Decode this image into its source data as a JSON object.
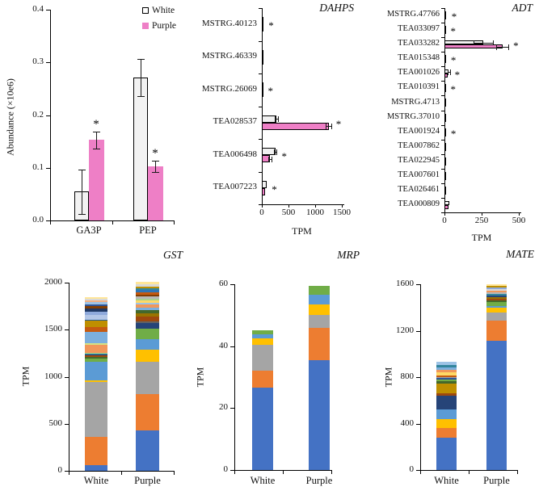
{
  "legend": {
    "items": [
      {
        "label": "White",
        "fill": "#ffffff",
        "stroke": "#000000"
      },
      {
        "label": "Purple",
        "fill": "#ee7fc6",
        "stroke": "#ee7fc6"
      }
    ]
  },
  "colors": {
    "white_bar_fill": "#f2f2f2",
    "purple_bar_fill": "#ee7fc6",
    "bar_stroke": "#000000",
    "error_bar": "#1a1a1a"
  },
  "chart_data": [
    {
      "id": "abundance",
      "type": "bar",
      "title": "",
      "ylabel": "Abundance (×10e6)",
      "ylim": [
        0,
        0.4
      ],
      "yticks": [
        {
          "v": 0.0,
          "label": "0.0"
        },
        {
          "v": 0.1,
          "label": "0.1"
        },
        {
          "v": 0.2,
          "label": "0.2"
        },
        {
          "v": 0.3,
          "label": "0.3"
        },
        {
          "v": 0.4,
          "label": "0.4"
        }
      ],
      "categories": [
        "GA3P",
        "PEP"
      ],
      "series": [
        {
          "name": "White",
          "values": [
            0.055,
            0.271
          ],
          "errors": [
            0.042,
            0.035
          ],
          "sig": [
            false,
            false
          ]
        },
        {
          "name": "Purple",
          "values": [
            0.153,
            0.103
          ],
          "errors": [
            0.016,
            0.011
          ],
          "sig": [
            true,
            true
          ]
        }
      ],
      "legend_position": "top-right",
      "grid": false
    },
    {
      "id": "dahps",
      "type": "hbar",
      "title": "DAHPS",
      "xlabel": "TPM",
      "xlim": [
        0,
        1500
      ],
      "xticks": [
        {
          "v": 0,
          "label": "0"
        },
        {
          "v": 500,
          "label": "500"
        },
        {
          "v": 1000,
          "label": "1000"
        },
        {
          "v": 1500,
          "label": "1500"
        }
      ],
      "categories": [
        "MSTRG.40123",
        "MSTRG.46339",
        "MSTRG.26069",
        "TEA028537",
        "TEA006498",
        "TEA007223"
      ],
      "series": [
        {
          "name": "White",
          "values": [
            6,
            4,
            4,
            270,
            250,
            85
          ],
          "errors": [
            2,
            1,
            1,
            35,
            30,
            10
          ]
        },
        {
          "name": "Purple",
          "values": [
            28,
            5,
            10,
            1250,
            150,
            55
          ],
          "errors": [
            6,
            2,
            3,
            50,
            25,
            15
          ]
        }
      ],
      "sig": [
        true,
        false,
        true,
        true,
        true,
        true
      ],
      "grid": false
    },
    {
      "id": "adt",
      "type": "hbar",
      "title": "ADT",
      "xlabel": "TPM",
      "xlim": [
        0,
        500
      ],
      "xticks": [
        {
          "v": 0,
          "label": "0"
        },
        {
          "v": 250,
          "label": "250"
        },
        {
          "v": 500,
          "label": "500"
        }
      ],
      "categories": [
        "MSTRG.47766",
        "TEA033097",
        "TEA033282",
        "TEA015348",
        "TEA001026",
        "TEA010391",
        "MSTRG.4713",
        "MSTRG.37010",
        "TEA001924",
        "TEA007862",
        "TEA022945",
        "TEA007601",
        "TEA026461",
        "TEA000809"
      ],
      "series": [
        {
          "name": "White",
          "values": [
            6,
            4,
            260,
            4,
            28,
            3,
            2,
            2,
            6,
            4,
            3,
            4,
            6,
            32
          ],
          "errors": [
            2,
            1,
            65,
            1,
            8,
            1,
            1,
            1,
            2,
            1,
            1,
            1,
            2,
            6
          ]
        },
        {
          "name": "Purple",
          "values": [
            12,
            6,
            390,
            8,
            20,
            4,
            2,
            3,
            8,
            5,
            6,
            5,
            8,
            28
          ],
          "errors": [
            3,
            2,
            40,
            2,
            5,
            1,
            1,
            1,
            2,
            1,
            2,
            1,
            2,
            5
          ]
        }
      ],
      "sig": [
        true,
        true,
        true,
        true,
        true,
        true,
        false,
        false,
        true,
        false,
        false,
        false,
        false,
        false
      ],
      "grid": false
    },
    {
      "id": "gst",
      "type": "stacked-bar",
      "title": "GST",
      "ylabel": "TPM",
      "ylim": [
        0,
        2000
      ],
      "yticks": [
        {
          "v": 0,
          "label": "0"
        },
        {
          "v": 500,
          "label": "500"
        },
        {
          "v": 1000,
          "label": "1000"
        },
        {
          "v": 1500,
          "label": "1500"
        },
        {
          "v": 2000,
          "label": "2000"
        }
      ],
      "categories": [
        "White",
        "Purple"
      ],
      "bars": [
        {
          "label": "White",
          "segments": [
            [
              "#4472C4",
              60
            ],
            [
              "#ED7D31",
              300
            ],
            [
              "#A5A5A5",
              585
            ],
            [
              "#FFC000",
              15
            ],
            [
              "#5B9BD5",
              195
            ],
            [
              "#70AD47",
              40
            ],
            [
              "#43682B",
              15
            ],
            [
              "#9E480E",
              15
            ],
            [
              "#264478",
              12
            ],
            [
              "#31859C",
              10
            ],
            [
              "#A9D18E",
              8
            ],
            [
              "#F1975A",
              80
            ],
            [
              "#D6E284",
              25
            ],
            [
              "#7CAFDD",
              115
            ],
            [
              "#C55A11",
              55
            ],
            [
              "#BF8F00",
              65
            ],
            [
              "#255E91",
              10
            ],
            [
              "#B4C7E7",
              55
            ],
            [
              "#8FAADC",
              35
            ],
            [
              "#1F3864",
              30
            ],
            [
              "#833C00",
              25
            ],
            [
              "#2F5597",
              15
            ],
            [
              "#9DC3E6",
              25
            ],
            [
              "#F4B183",
              20
            ],
            [
              "#D9D9D9",
              20
            ],
            [
              "#FFE699",
              15
            ]
          ]
        },
        {
          "label": "Purple",
          "segments": [
            [
              "#4472C4",
              425
            ],
            [
              "#ED7D31",
              388
            ],
            [
              "#A5A5A5",
              343
            ],
            [
              "#FFC000",
              129
            ],
            [
              "#5B9BD5",
              114
            ],
            [
              "#70AD47",
              114
            ],
            [
              "#264478",
              57
            ],
            [
              "#636363",
              20
            ],
            [
              "#9E480E",
              51
            ],
            [
              "#997300",
              34
            ],
            [
              "#43682B",
              37
            ],
            [
              "#7CAFDD",
              20
            ],
            [
              "#F1975A",
              37
            ],
            [
              "#9DC3E6",
              20
            ],
            [
              "#FFD966",
              23
            ],
            [
              "#A9D18E",
              20
            ],
            [
              "#B7B7B7",
              20
            ],
            [
              "#833C00",
              23
            ],
            [
              "#C55A11",
              23
            ],
            [
              "#2E75B6",
              23
            ],
            [
              "#31859C",
              20
            ],
            [
              "#BF9000",
              20
            ],
            [
              "#D9D9D9",
              23
            ],
            [
              "#FFE699",
              23
            ]
          ]
        }
      ],
      "grid": false
    },
    {
      "id": "mrp",
      "type": "stacked-bar",
      "title": "MRP",
      "ylabel": "TPM",
      "ylim": [
        0,
        60
      ],
      "yticks": [
        {
          "v": 0,
          "label": "0"
        },
        {
          "v": 20,
          "label": "20"
        },
        {
          "v": 40,
          "label": "40"
        },
        {
          "v": 60,
          "label": "60"
        }
      ],
      "categories": [
        "White",
        "Purple"
      ],
      "bars": [
        {
          "label": "White",
          "segments": [
            [
              "#4472C4",
              26.5
            ],
            [
              "#ED7D31",
              5.5
            ],
            [
              "#A5A5A5",
              8.5
            ],
            [
              "#FFC000",
              2.0
            ],
            [
              "#5B9BD5",
              1.2
            ],
            [
              "#70AD47",
              1.5
            ]
          ]
        },
        {
          "label": "Purple",
          "segments": [
            [
              "#4472C4",
              35.5
            ],
            [
              "#ED7D31",
              10.5
            ],
            [
              "#A5A5A5",
              4.0
            ],
            [
              "#FFC000",
              3.5
            ],
            [
              "#5B9BD5",
              3.0
            ],
            [
              "#70AD47",
              3.1
            ]
          ]
        }
      ],
      "grid": false
    },
    {
      "id": "mate",
      "type": "stacked-bar",
      "title": "MATE",
      "ylabel": "TPM",
      "ylim": [
        0,
        1600
      ],
      "yticks": [
        {
          "v": 0,
          "label": "0"
        },
        {
          "v": 400,
          "label": "400"
        },
        {
          "v": 800,
          "label": "800"
        },
        {
          "v": 1200,
          "label": "1200"
        },
        {
          "v": 1600,
          "label": "1600"
        }
      ],
      "categories": [
        "White",
        "Purple"
      ],
      "bars": [
        {
          "label": "White",
          "segments": [
            [
              "#4472C4",
              280
            ],
            [
              "#ED7D31",
              80
            ],
            [
              "#FFC000",
              80
            ],
            [
              "#5B9BD5",
              85
            ],
            [
              "#264478",
              115
            ],
            [
              "#9E480E",
              18
            ],
            [
              "#BF8F00",
              85
            ],
            [
              "#43682B",
              22
            ],
            [
              "#70AD47",
              15
            ],
            [
              "#2F5597",
              10
            ],
            [
              "#A5A5A5",
              12
            ],
            [
              "#C55A11",
              13
            ],
            [
              "#FFD966",
              25
            ],
            [
              "#F1975A",
              25
            ],
            [
              "#7CAFDD",
              20
            ],
            [
              "#31859C",
              20
            ],
            [
              "#9DC3E6",
              25
            ]
          ]
        },
        {
          "label": "Purple",
          "segments": [
            [
              "#4472C4",
              1110
            ],
            [
              "#ED7D31",
              180
            ],
            [
              "#A5A5A5",
              65
            ],
            [
              "#FFC000",
              45
            ],
            [
              "#5B9BD5",
              15
            ],
            [
              "#70AD47",
              30
            ],
            [
              "#43682B",
              15
            ],
            [
              "#9E480E",
              15
            ],
            [
              "#997300",
              15
            ],
            [
              "#264478",
              12
            ],
            [
              "#31859C",
              13
            ],
            [
              "#B7B7B7",
              15
            ],
            [
              "#F1975A",
              15
            ],
            [
              "#D9D9D9",
              15
            ],
            [
              "#8FAADC",
              15
            ],
            [
              "#BF9000",
              10
            ],
            [
              "#FFE699",
              15
            ]
          ]
        }
      ],
      "grid": false
    }
  ]
}
